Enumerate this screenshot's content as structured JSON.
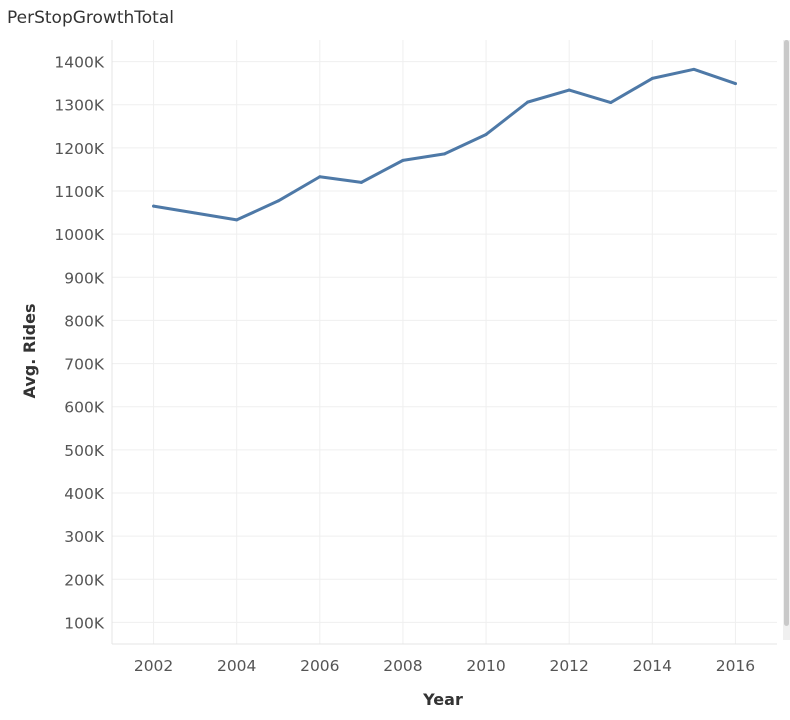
{
  "sheet": {
    "title": "PerStopGrowthTotal"
  },
  "colors": {
    "line": "#4e79a7",
    "grid": "#efefef",
    "tick_text": "#555555"
  },
  "chart_data": {
    "type": "line",
    "title": "PerStopGrowthTotal",
    "xlabel": "Year",
    "ylabel": "Avg. Rides",
    "x": [
      2002,
      2003,
      2004,
      2005,
      2006,
      2007,
      2008,
      2009,
      2010,
      2011,
      2012,
      2013,
      2014,
      2015,
      2016
    ],
    "series": [
      {
        "values": [
          1065000,
          1049000,
          1033000,
          1077000,
          1133000,
          1120000,
          1171000,
          1186000,
          1231000,
          1306000,
          1334000,
          1305000,
          1361000,
          1382000,
          1349000
        ]
      }
    ],
    "xticks": [
      2002,
      2004,
      2006,
      2008,
      2010,
      2012,
      2014,
      2016
    ],
    "xtick_labels": [
      "2002",
      "2004",
      "2006",
      "2008",
      "2010",
      "2012",
      "2014",
      "2016"
    ],
    "yticks": [
      100000,
      200000,
      300000,
      400000,
      500000,
      600000,
      700000,
      800000,
      900000,
      1000000,
      1100000,
      1200000,
      1300000,
      1400000
    ],
    "ytick_labels": [
      "100K",
      "200K",
      "300K",
      "400K",
      "500K",
      "600K",
      "700K",
      "800K",
      "900K",
      "1000K",
      "1100K",
      "1200K",
      "1300K",
      "1400K"
    ],
    "xlim": [
      2001,
      2017
    ],
    "ylim": [
      50000,
      1450000
    ],
    "grid": true,
    "legend": "none"
  }
}
